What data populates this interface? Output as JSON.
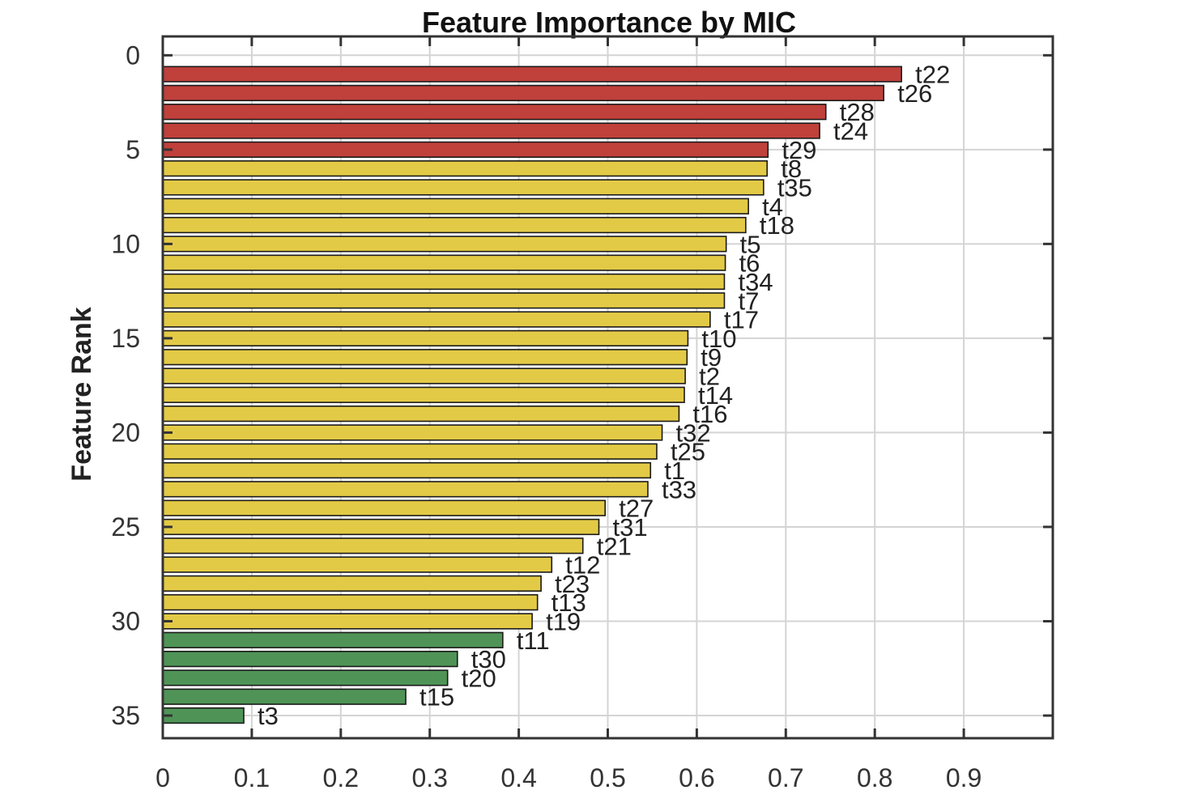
{
  "chart_data": {
    "type": "bar",
    "orientation": "horizontal",
    "title": "Feature Importance by MIC",
    "xlabel": "",
    "ylabel": "Feature Rank",
    "xlim": [
      0,
      1.0
    ],
    "ylim": [
      -1,
      36.2
    ],
    "x_ticks": [
      0,
      0.1,
      0.2,
      0.3,
      0.4,
      0.5,
      0.6,
      0.7,
      0.8,
      0.9
    ],
    "x_tick_labels": [
      "0",
      "0.1",
      "0.2",
      "0.3",
      "0.4",
      "0.5",
      "0.6",
      "0.7",
      "0.8",
      "0.9"
    ],
    "y_ticks": [
      0,
      5,
      10,
      15,
      20,
      25,
      30,
      35
    ],
    "y_tick_labels": [
      "0",
      "5",
      "10",
      "15",
      "20",
      "25",
      "30",
      "35"
    ],
    "grid": true,
    "colors": {
      "high": "#c0403b",
      "medium": "#e3ca46",
      "low": "#4f9456"
    },
    "bars": [
      {
        "rank": 1,
        "feature": "t22",
        "value": 0.83,
        "group": "high"
      },
      {
        "rank": 2,
        "feature": "t26",
        "value": 0.81,
        "group": "high"
      },
      {
        "rank": 3,
        "feature": "t28",
        "value": 0.745,
        "group": "high"
      },
      {
        "rank": 4,
        "feature": "t24",
        "value": 0.738,
        "group": "high"
      },
      {
        "rank": 5,
        "feature": "t29",
        "value": 0.68,
        "group": "high"
      },
      {
        "rank": 6,
        "feature": "t8",
        "value": 0.679,
        "group": "medium"
      },
      {
        "rank": 7,
        "feature": "t35",
        "value": 0.675,
        "group": "medium"
      },
      {
        "rank": 8,
        "feature": "t4",
        "value": 0.658,
        "group": "medium"
      },
      {
        "rank": 9,
        "feature": "t18",
        "value": 0.655,
        "group": "medium"
      },
      {
        "rank": 10,
        "feature": "t5",
        "value": 0.633,
        "group": "medium"
      },
      {
        "rank": 11,
        "feature": "t6",
        "value": 0.632,
        "group": "medium"
      },
      {
        "rank": 12,
        "feature": "t34",
        "value": 0.631,
        "group": "medium"
      },
      {
        "rank": 13,
        "feature": "t7",
        "value": 0.631,
        "group": "medium"
      },
      {
        "rank": 14,
        "feature": "t17",
        "value": 0.615,
        "group": "medium"
      },
      {
        "rank": 15,
        "feature": "t10",
        "value": 0.59,
        "group": "medium"
      },
      {
        "rank": 16,
        "feature": "t9",
        "value": 0.589,
        "group": "medium"
      },
      {
        "rank": 17,
        "feature": "t2",
        "value": 0.587,
        "group": "medium"
      },
      {
        "rank": 18,
        "feature": "t14",
        "value": 0.586,
        "group": "medium"
      },
      {
        "rank": 19,
        "feature": "t16",
        "value": 0.58,
        "group": "medium"
      },
      {
        "rank": 20,
        "feature": "t32",
        "value": 0.561,
        "group": "medium"
      },
      {
        "rank": 21,
        "feature": "t25",
        "value": 0.555,
        "group": "medium"
      },
      {
        "rank": 22,
        "feature": "t1",
        "value": 0.548,
        "group": "medium"
      },
      {
        "rank": 23,
        "feature": "t33",
        "value": 0.545,
        "group": "medium"
      },
      {
        "rank": 24,
        "feature": "t27",
        "value": 0.497,
        "group": "medium"
      },
      {
        "rank": 25,
        "feature": "t31",
        "value": 0.49,
        "group": "medium"
      },
      {
        "rank": 26,
        "feature": "t21",
        "value": 0.472,
        "group": "medium"
      },
      {
        "rank": 27,
        "feature": "t12",
        "value": 0.437,
        "group": "medium"
      },
      {
        "rank": 28,
        "feature": "t23",
        "value": 0.425,
        "group": "medium"
      },
      {
        "rank": 29,
        "feature": "t13",
        "value": 0.421,
        "group": "medium"
      },
      {
        "rank": 30,
        "feature": "t19",
        "value": 0.415,
        "group": "medium"
      },
      {
        "rank": 31,
        "feature": "t11",
        "value": 0.382,
        "group": "low"
      },
      {
        "rank": 32,
        "feature": "t30",
        "value": 0.331,
        "group": "low"
      },
      {
        "rank": 33,
        "feature": "t20",
        "value": 0.32,
        "group": "low"
      },
      {
        "rank": 34,
        "feature": "t15",
        "value": 0.273,
        "group": "low"
      },
      {
        "rank": 35,
        "feature": "t3",
        "value": 0.091,
        "group": "low"
      }
    ]
  }
}
